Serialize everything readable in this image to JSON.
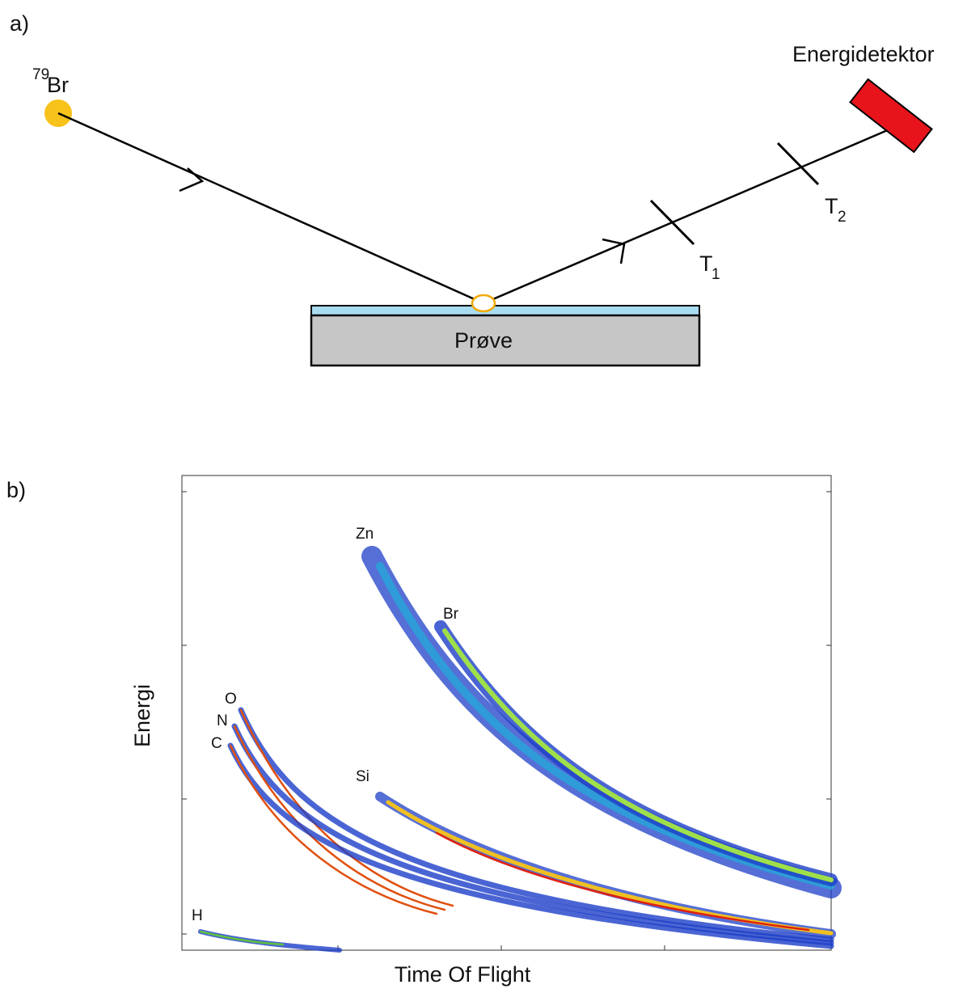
{
  "panel_a": {
    "label": "a)",
    "source": {
      "mass": "79",
      "element": "Br"
    },
    "detector": "Energidetektor",
    "timers": [
      {
        "letter": "T",
        "index": "1"
      },
      {
        "letter": "T",
        "index": "2"
      }
    ],
    "sample": "Prøve"
  },
  "panel_b": {
    "label": "b)",
    "y_label": "Energi",
    "x_label": "Time Of Flight",
    "elements": [
      "Zn",
      "Br",
      "O",
      "N",
      "C",
      "Si",
      "H"
    ]
  }
}
